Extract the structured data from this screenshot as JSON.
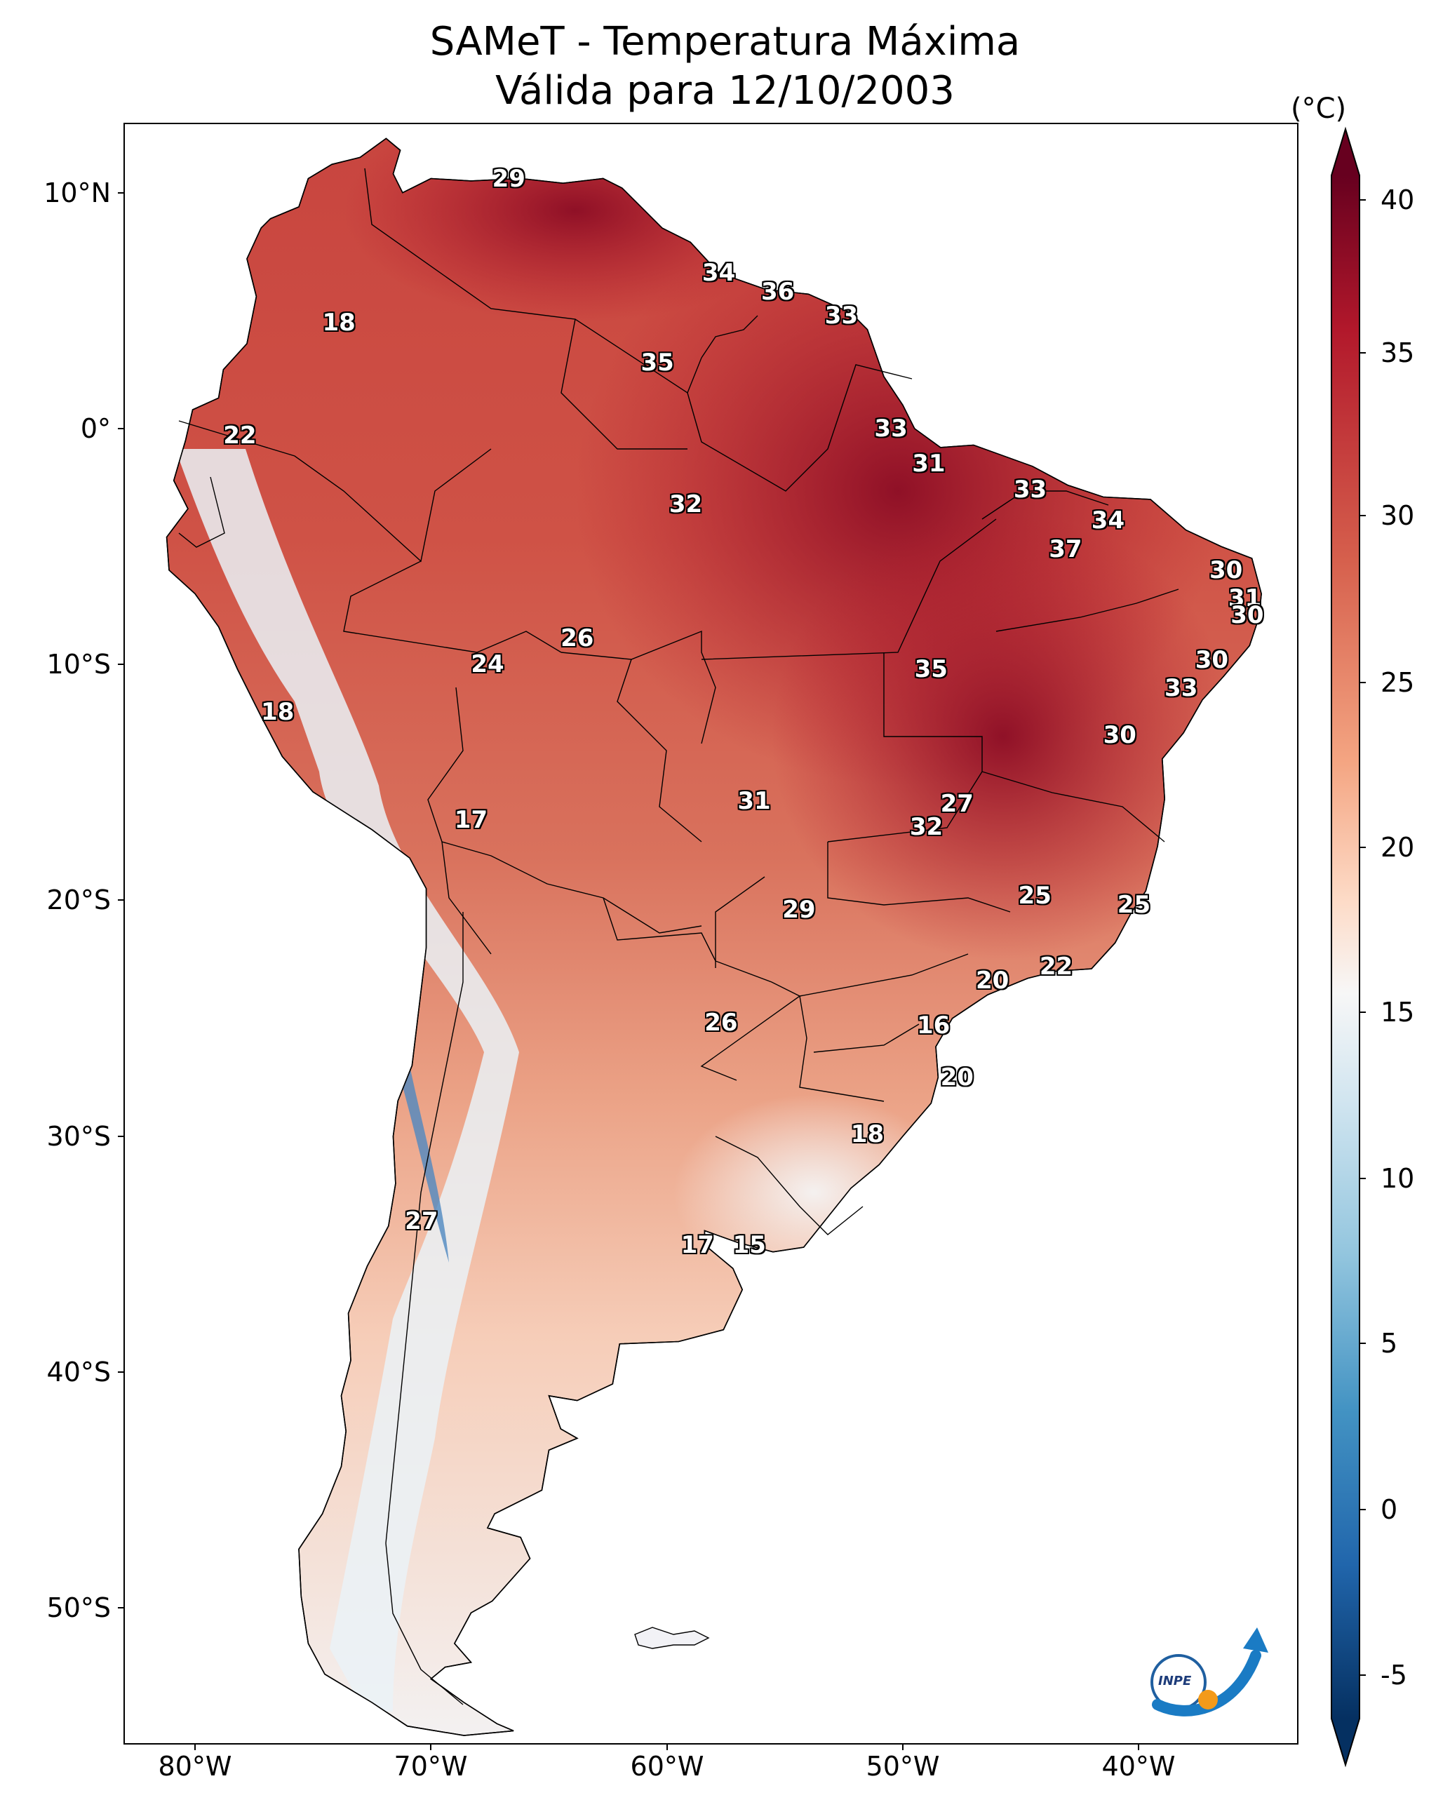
{
  "title": {
    "line1": "SAMeT - Temperatura Máxima",
    "line2": "Válida para 12/10/2003"
  },
  "axes": {
    "lat_ticks": [
      "10°N",
      "0°",
      "10°S",
      "20°S",
      "30°S",
      "40°S",
      "50°S"
    ],
    "lon_ticks": [
      "80°W",
      "70°W",
      "60°W",
      "50°W",
      "40°W"
    ]
  },
  "colorbar": {
    "unit": "(°C)",
    "ticks": [
      "40",
      "35",
      "30",
      "25",
      "20",
      "15",
      "10",
      "5",
      "0",
      "-5"
    ],
    "range": [
      -5,
      40
    ],
    "colors": {
      "max": "#67001f",
      "high": "#b2182b",
      "warm": "#d6604d",
      "mild": "#f4a582",
      "pale": "#fddbc7",
      "neutral": "#f7f7f7",
      "cool": "#d1e5f0",
      "cold": "#92c5de",
      "colder": "#4393c3",
      "coldest": "#2166ac",
      "min": "#053061"
    }
  },
  "chart_data": {
    "type": "heatmap",
    "title": "SAMeT - Temperatura Máxima Válida para 12/10/2003",
    "unit": "°C",
    "x_range": [
      -83,
      -33
    ],
    "y_range": [
      -56,
      13
    ],
    "labels": [
      {
        "text": "29",
        "lon": -66.7,
        "lat": 10.6
      },
      {
        "text": "34",
        "lon": -57.8,
        "lat": 6.6
      },
      {
        "text": "36",
        "lon": -55.3,
        "lat": 5.8
      },
      {
        "text": "33",
        "lon": -52.6,
        "lat": 4.8
      },
      {
        "text": "18",
        "lon": -73.9,
        "lat": 4.5
      },
      {
        "text": "35",
        "lon": -60.4,
        "lat": 2.8
      },
      {
        "text": "33",
        "lon": -50.5,
        "lat": 0.0
      },
      {
        "text": "22",
        "lon": -78.1,
        "lat": -0.3
      },
      {
        "text": "31",
        "lon": -48.9,
        "lat": -1.5
      },
      {
        "text": "33",
        "lon": -44.6,
        "lat": -2.6
      },
      {
        "text": "32",
        "lon": -59.2,
        "lat": -3.2
      },
      {
        "text": "34",
        "lon": -41.3,
        "lat": -3.9
      },
      {
        "text": "37",
        "lon": -43.1,
        "lat": -5.1
      },
      {
        "text": "30",
        "lon": -36.3,
        "lat": -6.0
      },
      {
        "text": "31",
        "lon": -35.5,
        "lat": -7.2
      },
      {
        "text": "30",
        "lon": -35.4,
        "lat": -7.9
      },
      {
        "text": "26",
        "lon": -63.8,
        "lat": -8.9
      },
      {
        "text": "30",
        "lon": -36.9,
        "lat": -9.8
      },
      {
        "text": "24",
        "lon": -67.6,
        "lat": -10.0
      },
      {
        "text": "35",
        "lon": -48.8,
        "lat": -10.2
      },
      {
        "text": "33",
        "lon": -38.2,
        "lat": -11.0
      },
      {
        "text": "18",
        "lon": -76.5,
        "lat": -12.0
      },
      {
        "text": "30",
        "lon": -40.8,
        "lat": -13.0
      },
      {
        "text": "31",
        "lon": -56.3,
        "lat": -15.8
      },
      {
        "text": "27",
        "lon": -47.7,
        "lat": -15.9
      },
      {
        "text": "32",
        "lon": -49.0,
        "lat": -16.9
      },
      {
        "text": "17",
        "lon": -68.3,
        "lat": -16.6
      },
      {
        "text": "25",
        "lon": -44.4,
        "lat": -19.8
      },
      {
        "text": "25",
        "lon": -40.2,
        "lat": -20.2
      },
      {
        "text": "29",
        "lon": -54.4,
        "lat": -20.4
      },
      {
        "text": "22",
        "lon": -43.5,
        "lat": -22.8
      },
      {
        "text": "20",
        "lon": -46.2,
        "lat": -23.4
      },
      {
        "text": "16",
        "lon": -48.7,
        "lat": -25.3
      },
      {
        "text": "26",
        "lon": -57.7,
        "lat": -25.2
      },
      {
        "text": "20",
        "lon": -47.7,
        "lat": -27.5
      },
      {
        "text": "18",
        "lon": -51.5,
        "lat": -29.9
      },
      {
        "text": "27",
        "lon": -70.4,
        "lat": -33.6
      },
      {
        "text": "17",
        "lon": -58.7,
        "lat": -34.6
      },
      {
        "text": "15",
        "lon": -56.5,
        "lat": -34.6
      }
    ]
  },
  "logo": {
    "text": "INPE",
    "icon": "inpe-logo"
  }
}
